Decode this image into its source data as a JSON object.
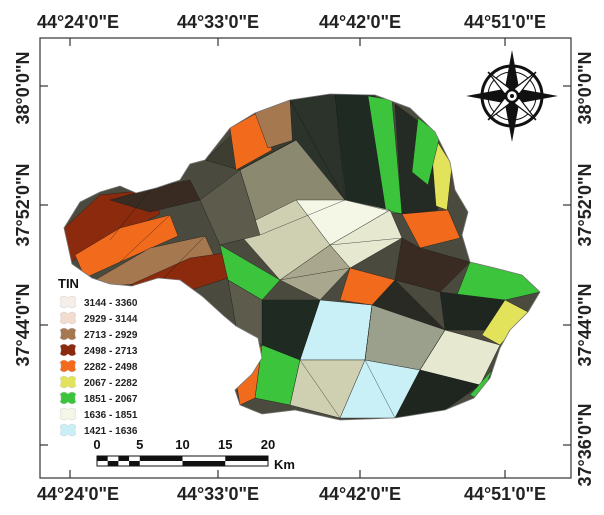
{
  "map": {
    "top_longitudes": [
      "44°24'0\"E",
      "44°33'0\"E",
      "44°42'0\"E",
      "44°51'0\"E"
    ],
    "bottom_longitudes": [
      "44°24'0\"E",
      "44°33'0\"E",
      "44°42'0\"E",
      "44°51'0\"E"
    ],
    "left_latitudes": [
      "38°0'0\"N",
      "37°52'0\"N",
      "37°44'0\"N"
    ],
    "right_latitudes": [
      "38°0'0\"N",
      "37°52'0\"N",
      "37°44'0\"N",
      "37°36'0\"N"
    ]
  },
  "legend": {
    "title": "TIN",
    "items": [
      {
        "label": "3144 - 3360",
        "color": "#f6eee8"
      },
      {
        "label": "2929 - 3144",
        "color": "#f2dccf"
      },
      {
        "label": "2713 - 2929",
        "color": "#a57850"
      },
      {
        "label": "2498 - 2713",
        "color": "#8c2a0e"
      },
      {
        "label": "2282 - 2498",
        "color": "#f26b1d"
      },
      {
        "label": "2067 - 2282",
        "color": "#e2e35a"
      },
      {
        "label": "1851 - 2067",
        "color": "#3cc43c"
      },
      {
        "label": "1636 - 1851",
        "color": "#f4f7e6"
      },
      {
        "label": "1421 - 1636",
        "color": "#c9f0f6"
      }
    ]
  },
  "scale_bar": {
    "ticks": [
      "0",
      "5",
      "10",
      "15",
      "20"
    ],
    "unit": "Km"
  },
  "north_arrow": {
    "icon": "compass-rose-icon"
  }
}
